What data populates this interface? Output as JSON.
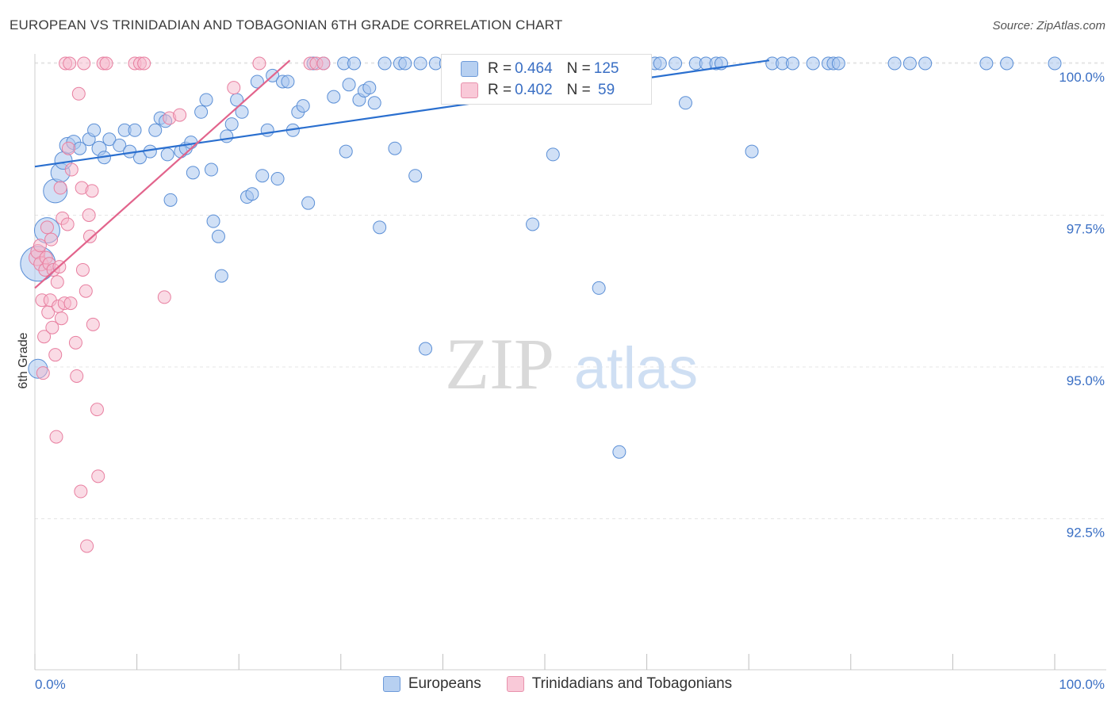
{
  "title": "EUROPEAN VS TRINIDADIAN AND TOBAGONIAN 6TH GRADE CORRELATION CHART",
  "source": "Source: ZipAtlas.com",
  "watermark": {
    "zip": "ZIP",
    "atlas": "atlas"
  },
  "legend": {
    "series1": {
      "r_label": "R = ",
      "r_value": "0.464",
      "n_label": "N = ",
      "n_value": "125"
    },
    "series2": {
      "r_label": "R = ",
      "r_value": "0.402",
      "n_label": "N = ",
      "n_value": " 59"
    }
  },
  "colors": {
    "blue_fill": "#a9c6ee",
    "blue_stroke": "#5b8fd6",
    "blue_line": "#2a6fcf",
    "pink_fill": "#f5b8cb",
    "pink_stroke": "#e87fa0",
    "pink_line": "#e2648c",
    "tick_text": "#3a6fc4"
  },
  "chart_data": {
    "type": "scatter",
    "title": "EUROPEAN VS TRINIDADIAN AND TOBAGONIAN 6TH GRADE CORRELATION CHART",
    "xlabel": "",
    "ylabel": "6th Grade",
    "xlim": [
      0,
      100
    ],
    "ylim": [
      90.0,
      100.3
    ],
    "x_tick_labels": [
      "0.0%",
      "100.0%"
    ],
    "y_ticks": [
      100.0,
      97.5,
      95.0,
      92.5
    ],
    "y_tick_labels": [
      "100.0%",
      "97.5%",
      "95.0%",
      "92.5%"
    ],
    "grid": true,
    "legend_position": "top-center",
    "series": [
      {
        "name": "Europeans",
        "r": 0.464,
        "n": 125,
        "trend": [
          [
            0,
            98.3
          ],
          [
            72,
            100.05
          ]
        ],
        "points": [
          [
            0.3,
            96.7,
            22
          ],
          [
            0.3,
            94.97,
            12
          ],
          [
            1.2,
            97.25,
            16
          ],
          [
            2.0,
            97.9,
            15
          ],
          [
            2.5,
            98.2,
            12
          ],
          [
            2.8,
            98.4,
            11
          ],
          [
            3.2,
            98.65,
            10
          ],
          [
            3.8,
            98.7,
            9
          ],
          [
            4.4,
            98.6,
            8
          ],
          [
            5.3,
            98.75,
            8
          ],
          [
            5.8,
            98.9,
            8
          ],
          [
            6.3,
            98.6,
            9
          ],
          [
            6.8,
            98.45,
            8
          ],
          [
            7.3,
            98.75,
            8
          ],
          [
            8.3,
            98.65,
            8
          ],
          [
            8.8,
            98.9,
            8
          ],
          [
            9.3,
            98.55,
            8
          ],
          [
            9.8,
            98.9,
            8
          ],
          [
            10.3,
            98.45,
            8
          ],
          [
            11.3,
            98.55,
            8
          ],
          [
            11.8,
            98.9,
            8
          ],
          [
            12.3,
            99.1,
            8
          ],
          [
            12.8,
            99.05,
            8
          ],
          [
            13.0,
            98.5,
            8
          ],
          [
            13.3,
            97.75,
            8
          ],
          [
            14.3,
            98.55,
            8
          ],
          [
            14.8,
            98.6,
            8
          ],
          [
            15.3,
            98.7,
            8
          ],
          [
            15.5,
            98.2,
            8
          ],
          [
            16.3,
            99.2,
            8
          ],
          [
            16.8,
            99.4,
            8
          ],
          [
            17.3,
            98.25,
            8
          ],
          [
            17.5,
            97.4,
            8
          ],
          [
            18.0,
            97.15,
            8
          ],
          [
            18.3,
            96.5,
            8
          ],
          [
            18.8,
            98.8,
            8
          ],
          [
            19.3,
            99.0,
            8
          ],
          [
            19.8,
            99.4,
            8
          ],
          [
            20.3,
            99.2,
            8
          ],
          [
            20.8,
            97.8,
            8
          ],
          [
            21.3,
            97.85,
            8
          ],
          [
            21.8,
            99.7,
            8
          ],
          [
            22.3,
            98.15,
            8
          ],
          [
            22.8,
            98.9,
            8
          ],
          [
            23.3,
            99.8,
            8
          ],
          [
            23.8,
            98.1,
            8
          ],
          [
            24.3,
            99.7,
            8
          ],
          [
            24.8,
            99.7,
            8
          ],
          [
            25.3,
            98.9,
            8
          ],
          [
            25.8,
            99.2,
            8
          ],
          [
            26.3,
            99.3,
            8
          ],
          [
            26.8,
            97.7,
            8
          ],
          [
            27.3,
            100.0,
            8
          ],
          [
            28.3,
            100.0,
            8
          ],
          [
            29.3,
            99.45,
            8
          ],
          [
            30.3,
            100.0,
            8
          ],
          [
            30.5,
            98.55,
            8
          ],
          [
            30.8,
            99.65,
            8
          ],
          [
            31.3,
            100.0,
            8
          ],
          [
            31.8,
            99.4,
            8
          ],
          [
            32.3,
            99.55,
            8
          ],
          [
            32.8,
            99.6,
            8
          ],
          [
            33.3,
            99.35,
            8
          ],
          [
            33.8,
            97.3,
            8
          ],
          [
            34.3,
            100.0,
            8
          ],
          [
            35.3,
            98.6,
            8
          ],
          [
            35.8,
            100.0,
            8
          ],
          [
            36.3,
            100.0,
            8
          ],
          [
            37.3,
            98.15,
            8
          ],
          [
            37.8,
            100.0,
            8
          ],
          [
            38.3,
            95.3,
            8
          ],
          [
            39.3,
            100.0,
            8
          ],
          [
            40.3,
            100.0,
            8
          ],
          [
            40.8,
            100.0,
            8
          ],
          [
            41.3,
            100.0,
            8
          ],
          [
            41.8,
            100.0,
            8
          ],
          [
            42.3,
            100.0,
            8
          ],
          [
            42.8,
            100.0,
            8
          ],
          [
            44.3,
            100.0,
            8
          ],
          [
            45.3,
            100.0,
            8
          ],
          [
            45.8,
            100.0,
            8
          ],
          [
            46.3,
            100.0,
            8
          ],
          [
            47.8,
            100.0,
            8
          ],
          [
            48.3,
            100.0,
            8
          ],
          [
            48.8,
            97.35,
            8
          ],
          [
            49.8,
            100.0,
            8
          ],
          [
            50.3,
            100.0,
            8
          ],
          [
            50.8,
            98.5,
            8
          ],
          [
            51.8,
            100.0,
            8
          ],
          [
            52.3,
            100.0,
            8
          ],
          [
            53.3,
            100.0,
            8
          ],
          [
            53.8,
            100.0,
            8
          ],
          [
            54.8,
            100.0,
            8
          ],
          [
            55.3,
            96.3,
            8
          ],
          [
            55.8,
            100.0,
            8
          ],
          [
            56.8,
            100.0,
            8
          ],
          [
            57.3,
            93.6,
            8
          ],
          [
            57.8,
            100.0,
            8
          ],
          [
            58.8,
            100.0,
            8
          ],
          [
            59.8,
            100.0,
            8
          ],
          [
            60.8,
            100.0,
            8
          ],
          [
            61.3,
            100.0,
            8
          ],
          [
            62.8,
            100.0,
            8
          ],
          [
            63.8,
            99.35,
            8
          ],
          [
            64.8,
            100.0,
            8
          ],
          [
            65.8,
            100.0,
            8
          ],
          [
            66.8,
            100.0,
            8
          ],
          [
            67.3,
            100.0,
            8
          ],
          [
            70.3,
            98.55,
            8
          ],
          [
            72.3,
            100.0,
            8
          ],
          [
            73.3,
            100.0,
            8
          ],
          [
            74.3,
            100.0,
            8
          ],
          [
            76.3,
            100.0,
            8
          ],
          [
            77.8,
            100.0,
            8
          ],
          [
            78.3,
            100.0,
            8
          ],
          [
            78.8,
            100.0,
            8
          ],
          [
            84.3,
            100.0,
            8
          ],
          [
            85.8,
            100.0,
            8
          ],
          [
            87.3,
            100.0,
            8
          ],
          [
            93.3,
            100.0,
            8
          ],
          [
            95.3,
            100.0,
            8
          ],
          [
            100.0,
            100.0,
            8
          ]
        ]
      },
      {
        "name": "Trinidadians and Tobagonians",
        "r": 0.402,
        "n": 59,
        "trend": [
          [
            0,
            96.3
          ],
          [
            25,
            100.05
          ]
        ],
        "points": [
          [
            0.2,
            96.8,
            10
          ],
          [
            0.3,
            96.9,
            9
          ],
          [
            0.5,
            97.0,
            8
          ],
          [
            0.6,
            96.7,
            9
          ],
          [
            0.7,
            96.1,
            8
          ],
          [
            0.8,
            94.9,
            8
          ],
          [
            0.9,
            95.5,
            8
          ],
          [
            1.0,
            96.6,
            8
          ],
          [
            1.1,
            96.8,
            8
          ],
          [
            1.2,
            97.3,
            8
          ],
          [
            1.3,
            95.9,
            8
          ],
          [
            1.4,
            96.7,
            8
          ],
          [
            1.5,
            96.1,
            8
          ],
          [
            1.6,
            97.1,
            8
          ],
          [
            1.7,
            95.65,
            8
          ],
          [
            1.8,
            96.6,
            8
          ],
          [
            2.0,
            95.2,
            8
          ],
          [
            2.1,
            93.85,
            8
          ],
          [
            2.2,
            96.4,
            8
          ],
          [
            2.3,
            96.0,
            8
          ],
          [
            2.4,
            96.65,
            8
          ],
          [
            2.5,
            97.95,
            8
          ],
          [
            2.6,
            95.8,
            8
          ],
          [
            2.7,
            97.45,
            8
          ],
          [
            2.9,
            96.05,
            8
          ],
          [
            3.0,
            100.0,
            8
          ],
          [
            3.2,
            97.35,
            8
          ],
          [
            3.3,
            98.6,
            8
          ],
          [
            3.4,
            100.0,
            8
          ],
          [
            3.5,
            96.05,
            8
          ],
          [
            3.6,
            98.25,
            8
          ],
          [
            4.0,
            95.4,
            8
          ],
          [
            4.1,
            94.85,
            8
          ],
          [
            4.3,
            99.5,
            8
          ],
          [
            4.5,
            92.95,
            8
          ],
          [
            4.6,
            97.95,
            8
          ],
          [
            4.7,
            96.6,
            8
          ],
          [
            4.8,
            100.0,
            8
          ],
          [
            5.0,
            96.25,
            8
          ],
          [
            5.1,
            92.05,
            8
          ],
          [
            5.3,
            97.5,
            8
          ],
          [
            5.4,
            97.15,
            8
          ],
          [
            5.6,
            97.9,
            8
          ],
          [
            5.7,
            95.7,
            8
          ],
          [
            6.1,
            94.3,
            8
          ],
          [
            6.2,
            93.2,
            8
          ],
          [
            6.7,
            100.0,
            8
          ],
          [
            7.0,
            100.0,
            8
          ],
          [
            9.8,
            100.0,
            8
          ],
          [
            10.3,
            100.0,
            8
          ],
          [
            10.7,
            100.0,
            8
          ],
          [
            12.7,
            96.15,
            8
          ],
          [
            13.2,
            99.1,
            8
          ],
          [
            14.2,
            99.15,
            8
          ],
          [
            19.5,
            99.6,
            8
          ],
          [
            22.0,
            100.0,
            8
          ],
          [
            27.0,
            100.0,
            8
          ],
          [
            27.6,
            100.0,
            8
          ],
          [
            28.3,
            100.0,
            8
          ]
        ]
      }
    ]
  }
}
